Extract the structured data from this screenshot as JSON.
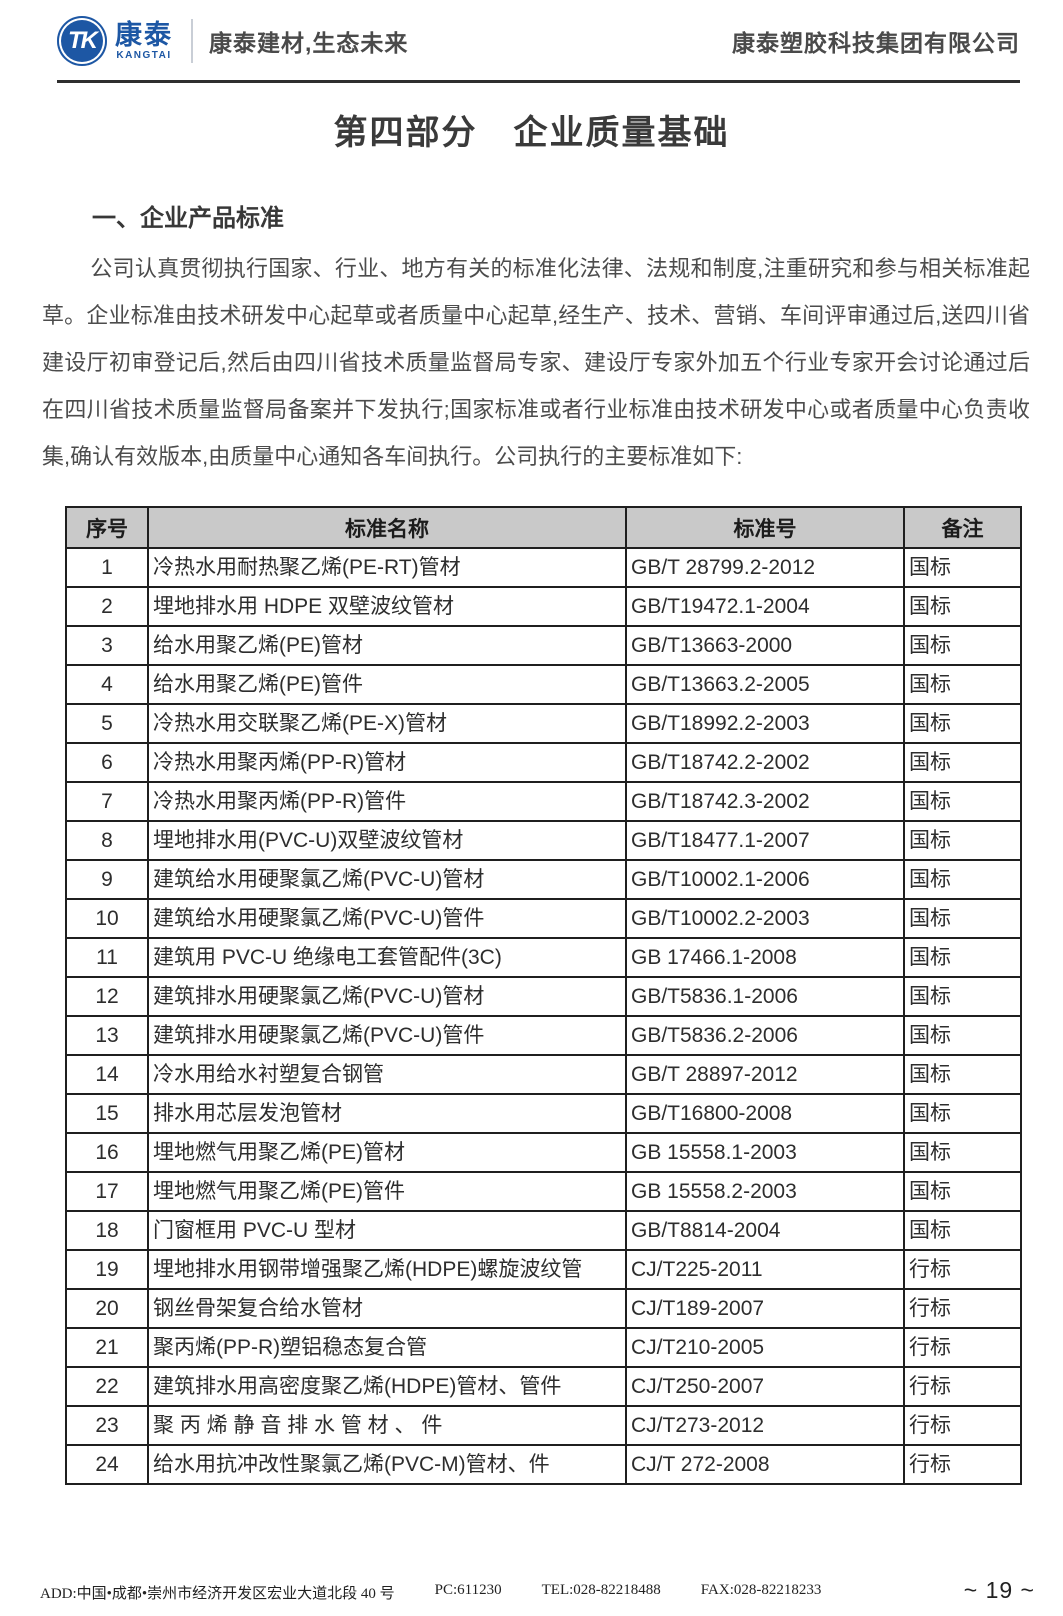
{
  "header": {
    "logo_mark": "TK",
    "logo_cn": "康泰",
    "logo_en": "KANGTAI",
    "tagline": "康泰建材,生态未来",
    "company": "康泰塑胶科技集团有限公司",
    "brand_blue": "#1d57a4"
  },
  "title": "第四部分　企业质量基础",
  "section": {
    "heading": "一、企业产品标准",
    "paragraph": "公司认真贯彻执行国家、行业、地方有关的标准化法律、法规和制度,注重研究和参与相关标准起草。企业标准由技术研发中心起草或者质量中心起草,经生产、技术、营销、车间评审通过后,送四川省建设厅初审登记后,然后由四川省技术质量监督局专家、建设厅专家外加五个行业专家开会讨论通过后在四川省技术质量监督局备案并下发执行;国家标准或者行业标准由技术研发中心或者质量中心负责收集,确认有效版本,由质量中心通知各车间执行。公司执行的主要标准如下:"
  },
  "table": {
    "headers": [
      "序号",
      "标准名称",
      "标准号",
      "备注"
    ],
    "rows": [
      [
        "1",
        "冷热水用耐热聚乙烯(PE-RT)管材",
        "GB/T 28799.2-2012",
        "国标"
      ],
      [
        "2",
        "埋地排水用 HDPE 双壁波纹管材",
        "GB/T19472.1-2004",
        "国标"
      ],
      [
        "3",
        "给水用聚乙烯(PE)管材",
        "GB/T13663-2000",
        "国标"
      ],
      [
        "4",
        "给水用聚乙烯(PE)管件",
        "GB/T13663.2-2005",
        "国标"
      ],
      [
        "5",
        "冷热水用交联聚乙烯(PE-X)管材",
        "GB/T18992.2-2003",
        "国标"
      ],
      [
        "6",
        "冷热水用聚丙烯(PP-R)管材",
        "GB/T18742.2-2002",
        "国标"
      ],
      [
        "7",
        "冷热水用聚丙烯(PP-R)管件",
        "GB/T18742.3-2002",
        "国标"
      ],
      [
        "8",
        "埋地排水用(PVC-U)双壁波纹管材",
        "GB/T18477.1-2007",
        "国标"
      ],
      [
        "9",
        "建筑给水用硬聚氯乙烯(PVC-U)管材",
        "GB/T10002.1-2006",
        "国标"
      ],
      [
        "10",
        "建筑给水用硬聚氯乙烯(PVC-U)管件",
        "GB/T10002.2-2003",
        "国标"
      ],
      [
        "11",
        "建筑用 PVC-U 绝缘电工套管配件(3C)",
        "GB 17466.1-2008",
        "国标"
      ],
      [
        "12",
        "建筑排水用硬聚氯乙烯(PVC-U)管材",
        "GB/T5836.1-2006",
        "国标"
      ],
      [
        "13",
        "建筑排水用硬聚氯乙烯(PVC-U)管件",
        "GB/T5836.2-2006",
        "国标"
      ],
      [
        "14",
        "冷水用给水衬塑复合钢管",
        "GB/T 28897-2012",
        "国标"
      ],
      [
        "15",
        "排水用芯层发泡管材",
        "GB/T16800-2008",
        "国标"
      ],
      [
        "16",
        "埋地燃气用聚乙烯(PE)管材",
        "GB 15558.1-2003",
        "国标"
      ],
      [
        "17",
        "埋地燃气用聚乙烯(PE)管件",
        "GB 15558.2-2003",
        "国标"
      ],
      [
        "18",
        "门窗框用 PVC-U 型材",
        "GB/T8814-2004",
        "国标"
      ],
      [
        "19",
        "埋地排水用钢带增强聚乙烯(HDPE)螺旋波纹管",
        "CJ/T225-2011",
        "行标"
      ],
      [
        "20",
        "钢丝骨架复合给水管材",
        "CJ/T189-2007",
        "行标"
      ],
      [
        "21",
        "聚丙烯(PP-R)塑铝稳态复合管",
        "CJ/T210-2005",
        "行标"
      ],
      [
        "22",
        "建筑排水用高密度聚乙烯(HDPE)管材、管件",
        "CJ/T250-2007",
        "行标"
      ],
      [
        "23",
        "聚 丙 烯 静 音 排 水 管 材 、 件",
        "CJ/T273-2012",
        "行标"
      ],
      [
        "24",
        "给水用抗冲改性聚氯乙烯(PVC-M)管材、件",
        "CJ/T 272-2008",
        "行标"
      ]
    ]
  },
  "footer": {
    "address": "ADD:中国•成都•崇州市经济开发区宏业大道北段 40 号",
    "pc": "PC:611230",
    "tel": "TEL:028-82218488",
    "fax": "FAX:028-82218233",
    "page": "~ 19 ~"
  }
}
